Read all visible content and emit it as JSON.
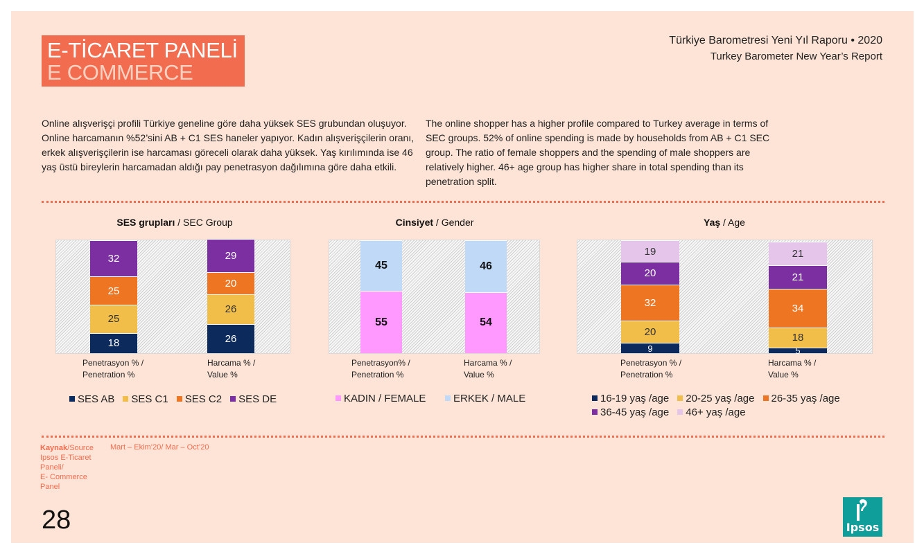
{
  "header": {
    "title_tr": "E-TİCARET PANELİ",
    "title_en": "E COMMERCE",
    "report_tr": "Türkiye Barometresi Yeni Yıl Raporu • 2020",
    "report_en": "Turkey Barometer New Year’s Report"
  },
  "intro": {
    "tr": "Online alışverişçi profili Türkiye geneline göre daha yüksek SES grubundan oluşuyor. Online harcamanın %52’sini AB + C1 SES haneler yapıyor. Kadın alışverişçilerin oranı, erkek alışverişçilerin ise harcaması göreceli olarak daha yüksek. Yaş kırılımında ise 46 yaş üstü bireylerin harcamadan aldığı pay penetrasyon dağılımına göre daha etkili.",
    "en": "The online shopper has a higher profile compared to Turkey average in terms of SEC groups. 52% of online spending is made by households from AB + C1 SEC group. The ratio of female shoppers and the spending of male shoppers are relatively higher. 46+ age group has higher share in total spending than its penetration split."
  },
  "colors": {
    "accent": "#f26c4f",
    "background": "#fde4d6",
    "ses_ab": "#0c2a5b",
    "ses_c1": "#f2be4a",
    "ses_c2": "#ee7623",
    "ses_de": "#7b2fa0",
    "female": "#ff99ff",
    "male": "#bfd9f7",
    "age_16_19": "#0c2a5b",
    "age_20_25": "#f2be4a",
    "age_26_35": "#ee7623",
    "age_36_45": "#7b2fa0",
    "age_46_plus": "#e5c6ea",
    "logo": "#0f9e9a"
  },
  "chart_data": [
    {
      "type": "bar",
      "stacked": true,
      "title_bold": "SES grupları",
      "title_rest": " / SEC Group",
      "categories": [
        "Penetrasyon % / Penetration %",
        "Harcama % / Value %"
      ],
      "category_lines": [
        [
          "Penetrasyon % /",
          "Penetration %"
        ],
        [
          "Harcama % /",
          "Value %"
        ]
      ],
      "series": [
        {
          "name": "SES AB",
          "values": [
            18,
            26
          ]
        },
        {
          "name": "SES C1",
          "values": [
            25,
            26
          ]
        },
        {
          "name": "SES C2",
          "values": [
            25,
            20
          ]
        },
        {
          "name": "SES DE",
          "values": [
            32,
            29
          ]
        }
      ],
      "ylim": [
        0,
        100
      ],
      "legend_position": "bottom"
    },
    {
      "type": "bar",
      "stacked": true,
      "title_bold": "Cinsiyet",
      "title_rest": " / Gender",
      "categories": [
        "Penetrasyon% / Penetration %",
        "Harcama % / Value %"
      ],
      "category_lines": [
        [
          "Penetrasyon% /",
          "Penetration %"
        ],
        [
          "Harcama % /",
          "Value %"
        ]
      ],
      "series": [
        {
          "name": "KADIN / FEMALE",
          "values": [
            55,
            54
          ]
        },
        {
          "name": "ERKEK / MALE",
          "values": [
            45,
            46
          ]
        }
      ],
      "ylim": [
        0,
        100
      ],
      "legend_position": "bottom"
    },
    {
      "type": "bar",
      "stacked": true,
      "title_bold": "Yaş",
      "title_rest": " / Age",
      "categories": [
        "Penetrasyon % / Penetration %",
        "Harcama % / Value %"
      ],
      "category_lines": [
        [
          "Penetrasyon % /",
          "Penetration %"
        ],
        [
          "Harcama % /",
          "Value %"
        ]
      ],
      "series": [
        {
          "name": "16-19 yaş /age",
          "values": [
            9,
            5
          ]
        },
        {
          "name": "20-25 yaş /age",
          "values": [
            20,
            18
          ]
        },
        {
          "name": "26-35 yaş /age",
          "values": [
            32,
            34
          ]
        },
        {
          "name": "36-45 yaş /age",
          "values": [
            20,
            21
          ]
        },
        {
          "name": "46+ yaş /age",
          "values": [
            19,
            21
          ]
        }
      ],
      "ylim": [
        0,
        100
      ],
      "legend_position": "bottom"
    }
  ],
  "footer": {
    "source_label": "Kaynak",
    "source_rest": "/Source",
    "source_lines": [
      "Ipsos E-Ticaret",
      "Paneli/",
      "E- Commerce",
      "Panel"
    ],
    "period_tr": "Mart – Ekim’20/",
    "period_en": " Mar – Oct’20",
    "page_number": "28",
    "logo_text": "Ipsos"
  }
}
